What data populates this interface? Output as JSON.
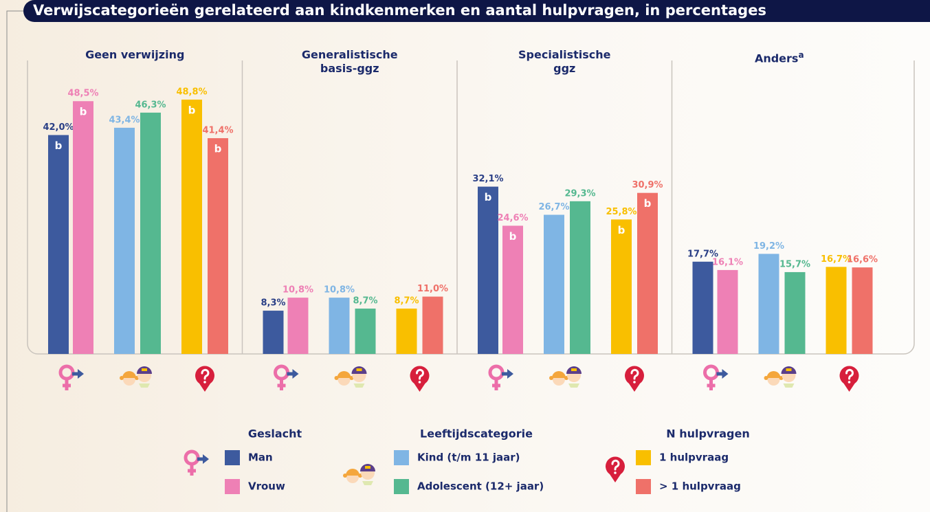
{
  "chart_data": {
    "type": "bar",
    "title": "Verwijscategorieën gerelateerd aan kindkenmerken en aantal hulpvragen, in percentages",
    "categories": [
      "Geen verwijzing",
      "Generalistische\nbasis-ggz",
      "Specialistische\nggz",
      "Anders"
    ],
    "category_notes": [
      null,
      null,
      null,
      "a"
    ],
    "ylim": [
      0,
      60
    ],
    "legend_groups": [
      {
        "title": "Geslacht"
      },
      {
        "title": "Leeftijdscategorie"
      },
      {
        "title": "N hulpvragen"
      }
    ],
    "series": [
      {
        "name": "Man",
        "color": "#3d5a9e",
        "label_color": "#2a3f86",
        "values": [
          42.0,
          8.3,
          32.1,
          17.7
        ],
        "value_labels": [
          "42,0%",
          "8,3%",
          "32,1%",
          "17,7%"
        ],
        "annotations": [
          "b",
          null,
          "b",
          null
        ]
      },
      {
        "name": "Vrouw",
        "color": "#ee80b5",
        "values": [
          48.5,
          10.8,
          24.6,
          16.1
        ],
        "value_labels": [
          "48,5%",
          "10,8%",
          "24,6%",
          "16,1%"
        ],
        "annotations": [
          "b",
          null,
          "b",
          null
        ]
      },
      {
        "name": "Kind (t/m 11 jaar)",
        "color": "#7fb5e4",
        "values": [
          43.4,
          10.8,
          26.7,
          19.2
        ],
        "value_labels": [
          "43,4%",
          "10,8%",
          "26,7%",
          "19,2%"
        ],
        "annotations": [
          null,
          null,
          null,
          null
        ]
      },
      {
        "name": "Adolescent (12+ jaar)",
        "color": "#55b890",
        "values": [
          46.3,
          8.7,
          29.3,
          15.7
        ],
        "value_labels": [
          "46,3%",
          "8,7%",
          "29,3%",
          "15,7%"
        ],
        "annotations": [
          null,
          null,
          null,
          null
        ]
      },
      {
        "name": "1 hulpvraag",
        "color": "#f9bf00",
        "values": [
          48.8,
          8.7,
          25.8,
          16.7
        ],
        "value_labels": [
          "48,8%",
          "8,7%",
          "25,8%",
          "16,7%"
        ],
        "annotations": [
          "b",
          null,
          "b",
          null
        ]
      },
      {
        "name": "> 1 hulpvraag",
        "color": "#ef7169",
        "values": [
          41.4,
          11.0,
          30.9,
          16.6
        ],
        "value_labels": [
          "41,4%",
          "11,0%",
          "30,9%",
          "16,6%"
        ],
        "annotations": [
          "b",
          null,
          "b",
          null
        ]
      }
    ]
  }
}
